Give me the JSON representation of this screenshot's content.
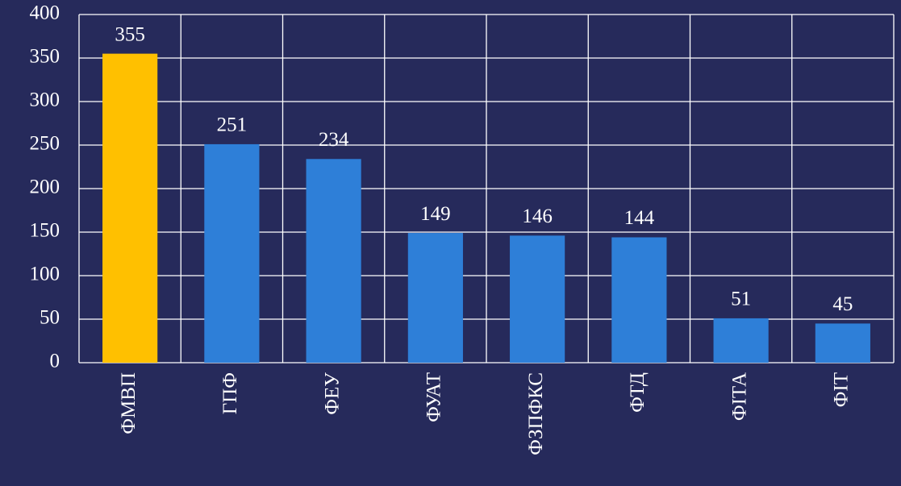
{
  "chart_data": {
    "type": "bar",
    "categories": [
      "ФМВП",
      "ГПФ",
      "ФЕУ",
      "ФУАТ",
      "ФЗПФКС",
      "ФТД",
      "ФІТА",
      "ФІТ"
    ],
    "values": [
      355,
      251,
      234,
      149,
      146,
      144,
      51,
      45
    ],
    "colors": [
      "#ffc000",
      "#2e7fd8",
      "#2e7fd8",
      "#2e7fd8",
      "#2e7fd8",
      "#2e7fd8",
      "#2e7fd8",
      "#2e7fd8"
    ],
    "ylim": [
      0,
      400
    ],
    "yticks": [
      0,
      50,
      100,
      150,
      200,
      250,
      300,
      350,
      400
    ],
    "grid": true
  }
}
